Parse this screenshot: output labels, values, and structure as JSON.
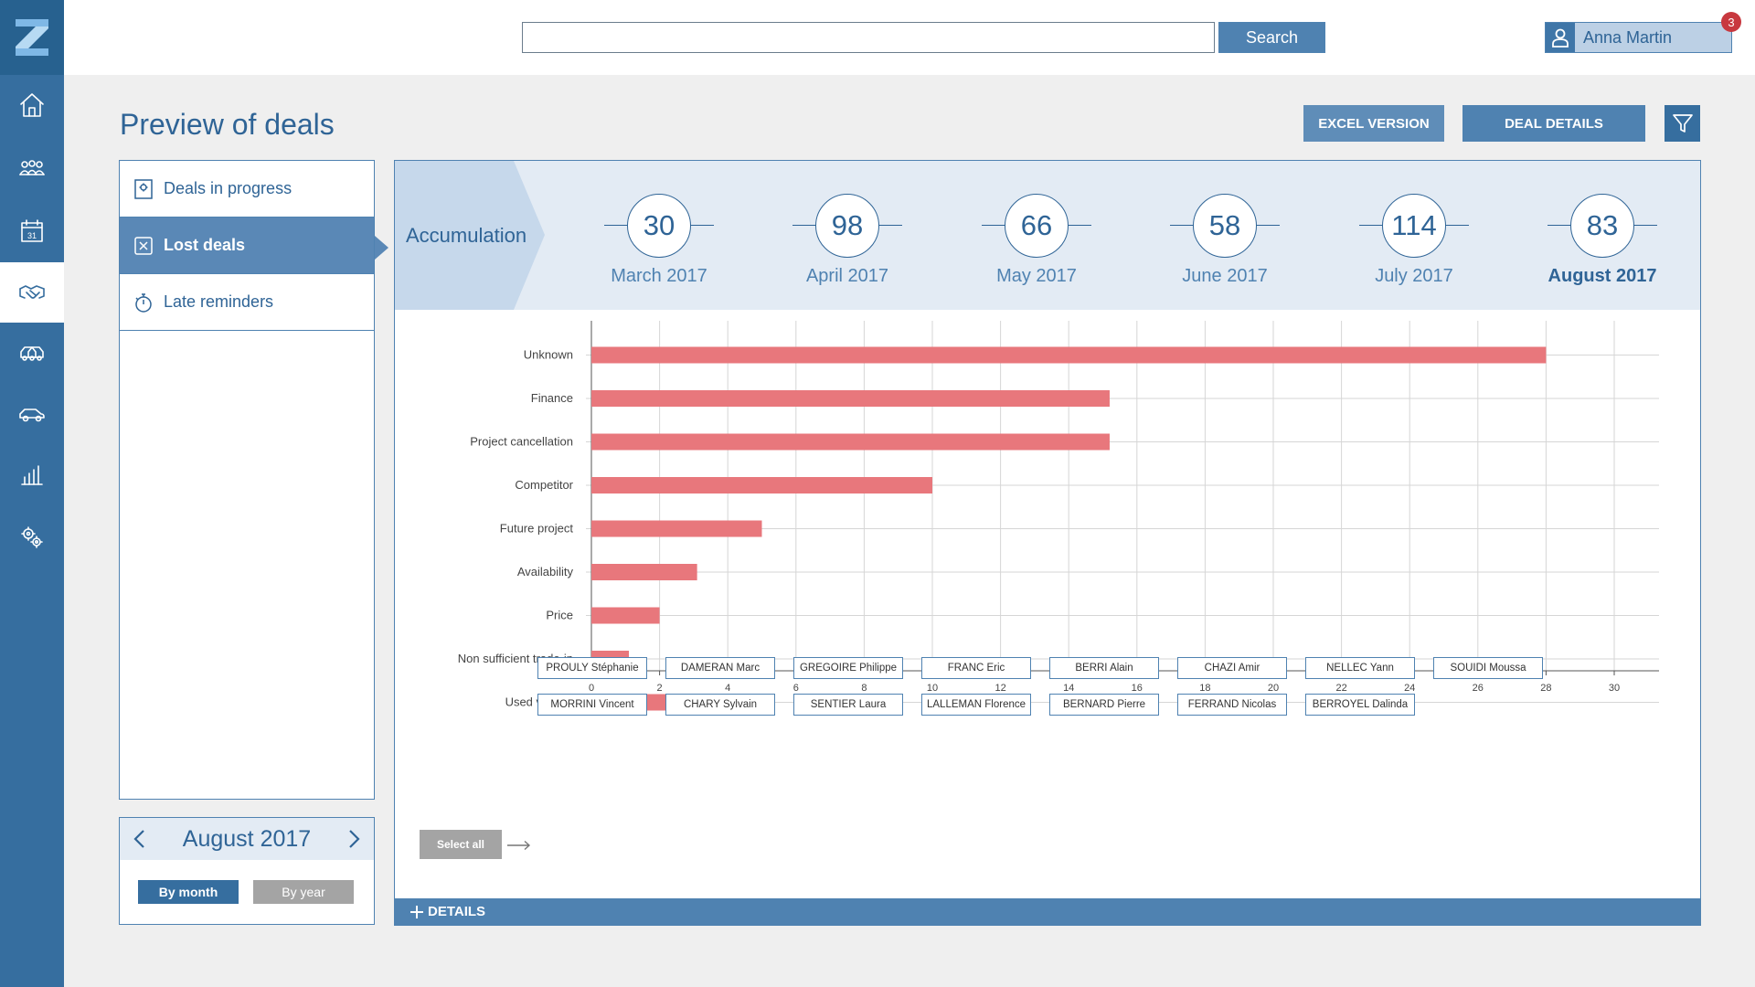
{
  "topbar": {
    "search_placeholder": "",
    "search_label": "Search",
    "user_name": "Anna Martin",
    "notification_count": "3"
  },
  "sidebar": {
    "items": [
      {
        "icon": "home-icon",
        "active": false
      },
      {
        "icon": "team-icon",
        "active": false
      },
      {
        "icon": "calendar-icon",
        "label": "31",
        "active": false
      },
      {
        "icon": "handshake-icon",
        "active": true
      },
      {
        "icon": "fleet-icon",
        "active": false
      },
      {
        "icon": "car-icon",
        "active": false
      },
      {
        "icon": "bar-chart-icon",
        "active": false
      },
      {
        "icon": "settings-icon",
        "active": false
      }
    ]
  },
  "page": {
    "title": "Preview of deals",
    "excel_label": "EXCEL VERSION",
    "deal_details_label": "DEAL DETAILS",
    "filter_icon": "filter-icon"
  },
  "menu": {
    "items": [
      {
        "label": "Deals in progress",
        "icon": "gear-document-icon",
        "active": false
      },
      {
        "label": "Lost deals",
        "icon": "x-box-icon",
        "active": true
      },
      {
        "label": "Late reminders",
        "icon": "stopwatch-icon",
        "active": false
      }
    ]
  },
  "period": {
    "label": "August 2017",
    "by_month_label": "By month",
    "by_year_label": "By year",
    "selected": "By month"
  },
  "summary": {
    "accumulation_label": "Accumulation",
    "months": [
      {
        "value": "30",
        "label": "March 2017",
        "active": false
      },
      {
        "value": "98",
        "label": "April 2017",
        "active": false
      },
      {
        "value": "66",
        "label": "May 2017",
        "active": false
      },
      {
        "value": "58",
        "label": "June 2017",
        "active": false
      },
      {
        "value": "114",
        "label": "July 2017",
        "active": false
      },
      {
        "value": "83",
        "label": "August 2017",
        "active": true
      }
    ]
  },
  "chart_data": {
    "type": "bar",
    "orientation": "horizontal",
    "categories": [
      "Unknown",
      "Finance",
      "Project cancellation",
      "Competitor",
      "Future project",
      "Availability",
      "Price",
      "Non sufficient trade-in",
      "Used vehicle"
    ],
    "values": [
      28,
      15.2,
      15.2,
      10,
      5,
      3.1,
      2,
      1.1,
      3.1
    ],
    "xlim": [
      0,
      31
    ],
    "xticks": [
      0,
      2,
      4,
      6,
      8,
      10,
      12,
      14,
      16,
      18,
      20,
      22,
      24,
      26,
      28,
      30
    ],
    "grid": true,
    "bar_color": "#e8777c"
  },
  "people": {
    "select_all_label": "Select all",
    "row1": [
      "PROULY Stéphanie",
      "DAMERAN Marc",
      "GREGOIRE Philippe",
      "FRANC Eric",
      "BERRI Alain",
      "CHAZI Amir",
      "NELLEC Yann",
      "SOUIDI Moussa"
    ],
    "row2": [
      "MORRINI Vincent",
      "CHARY Sylvain",
      "SENTIER Laura",
      "LALLEMAN Florence",
      "BERNARD Pierre",
      "FERRAND Nicolas",
      "BERROYEL Dalinda"
    ]
  },
  "details": {
    "label": "DETAILS"
  },
  "colors": {
    "primary": "#366e9f",
    "accent": "#4f82b1",
    "bar": "#e8777c",
    "badge": "#c8383f"
  }
}
